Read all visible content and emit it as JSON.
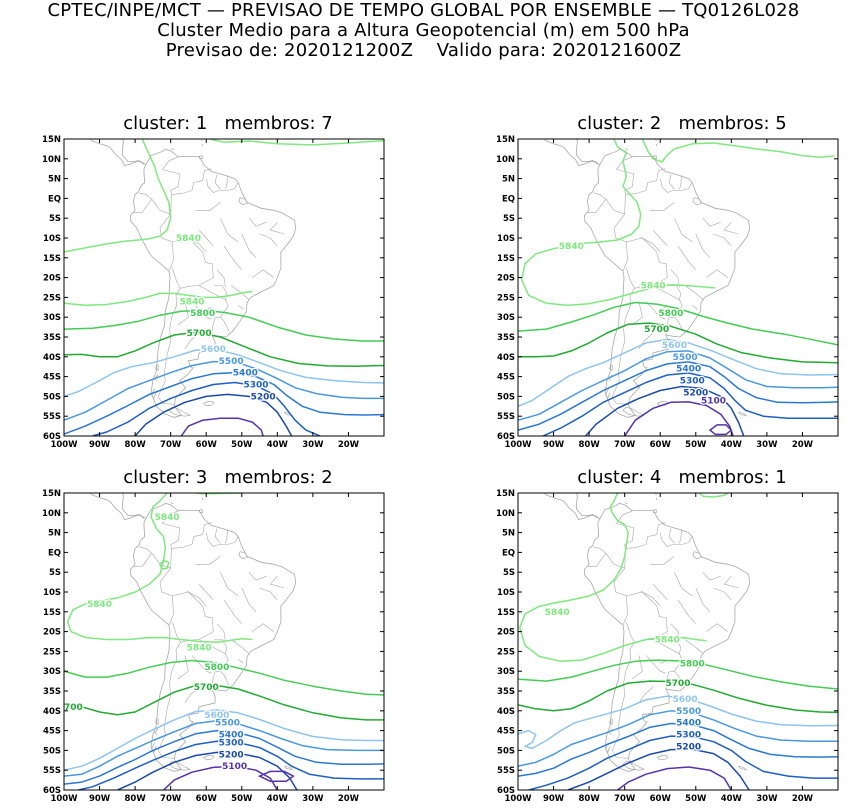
{
  "header": {
    "line1": "CPTEC/INPE/MCT — PREVISAO DE TEMPO GLOBAL POR ENSEMBLE — TQ0126L028",
    "line2": "Cluster Medio para a Altura Geopotencial (m) em 500 hPa",
    "line3": "Previsao de: 2020121200Z    Valido para: 2020121600Z"
  },
  "lat_labels": [
    "15N",
    "10N",
    "5N",
    "EQ",
    "5S",
    "10S",
    "15S",
    "20S",
    "25S",
    "30S",
    "35S",
    "40S",
    "45S",
    "50S",
    "55S",
    "60S"
  ],
  "lon_labels": [
    "100W",
    "90W",
    "80W",
    "70W",
    "60W",
    "50W",
    "40W",
    "30W",
    "20W"
  ],
  "colors": {
    "5840": "#7fe87f",
    "5800": "#44cc55",
    "5700": "#22aa33",
    "5600": "#8ec4ee",
    "5500": "#4a98dd",
    "5400": "#2a78d0",
    "5300": "#1e5fbf",
    "5200": "#1a4aa8",
    "5100": "#5533aa",
    "coast": "#a8a8a8"
  },
  "panels": [
    {
      "title": "cluster: 1   membros: 7",
      "labels": [
        {
          "text": "5840",
          "lon": -65,
          "lat": -10
        },
        {
          "text": "5840",
          "lon": -64,
          "lat": -26
        },
        {
          "text": "5800",
          "lon": -61,
          "lat": -29
        },
        {
          "text": "5700",
          "lon": -62,
          "lat": -34
        },
        {
          "text": "5600",
          "lon": -58,
          "lat": -38
        },
        {
          "text": "5500",
          "lon": -53,
          "lat": -41
        },
        {
          "text": "5400",
          "lon": -49,
          "lat": -44
        },
        {
          "text": "5300",
          "lon": -46,
          "lat": -47
        },
        {
          "text": "5200",
          "lon": -44,
          "lat": -50
        }
      ]
    },
    {
      "title": "cluster: 2   membros: 5",
      "labels": [
        {
          "text": "5840",
          "lon": -85,
          "lat": -12
        },
        {
          "text": "5840",
          "lon": -62,
          "lat": -22
        },
        {
          "text": "5800",
          "lon": -57,
          "lat": -29
        },
        {
          "text": "5700",
          "lon": -61,
          "lat": -33
        },
        {
          "text": "5600",
          "lon": -56,
          "lat": -37
        },
        {
          "text": "5500",
          "lon": -53,
          "lat": -40
        },
        {
          "text": "5400",
          "lon": -52,
          "lat": -43
        },
        {
          "text": "5300",
          "lon": -51,
          "lat": -46
        },
        {
          "text": "5200",
          "lon": -50,
          "lat": -49
        },
        {
          "text": "5100",
          "lon": -45,
          "lat": -51
        }
      ]
    },
    {
      "title": "cluster: 3   membros: 2",
      "labels": [
        {
          "text": "5840",
          "lon": -71,
          "lat": 9
        },
        {
          "text": "5840",
          "lon": -90,
          "lat": -13
        },
        {
          "text": "5840",
          "lon": -62,
          "lat": -24
        },
        {
          "text": "5800",
          "lon": -57,
          "lat": -29
        },
        {
          "text": "5700",
          "lon": -60,
          "lat": -34
        },
        {
          "text": "700",
          "lon": -100,
          "lat": -39
        },
        {
          "text": "5600",
          "lon": -57,
          "lat": -41
        },
        {
          "text": "5500",
          "lon": -54,
          "lat": -43
        },
        {
          "text": "5400",
          "lon": -53,
          "lat": -46
        },
        {
          "text": "5300",
          "lon": -53,
          "lat": -48
        },
        {
          "text": "5200",
          "lon": -53,
          "lat": -51
        },
        {
          "text": "5100",
          "lon": -52,
          "lat": -54
        }
      ]
    },
    {
      "title": "cluster: 4   membros: 1",
      "labels": [
        {
          "text": "5840",
          "lon": -89,
          "lat": -15
        },
        {
          "text": "5840",
          "lon": -58,
          "lat": -22
        },
        {
          "text": "5800",
          "lon": -51,
          "lat": -28
        },
        {
          "text": "5700",
          "lon": -55,
          "lat": -33
        },
        {
          "text": "5600",
          "lon": -53,
          "lat": -37
        },
        {
          "text": "5500",
          "lon": -52,
          "lat": -40
        },
        {
          "text": "5400",
          "lon": -52,
          "lat": -43
        },
        {
          "text": "5300",
          "lon": -52,
          "lat": -46
        },
        {
          "text": "5200",
          "lon": -52,
          "lat": -49
        }
      ]
    }
  ]
}
